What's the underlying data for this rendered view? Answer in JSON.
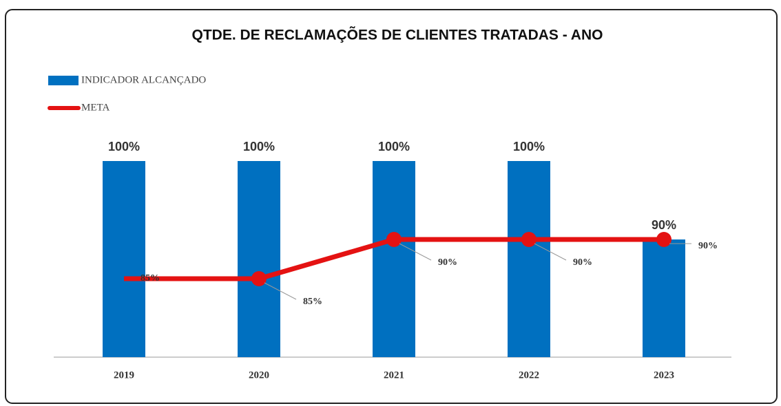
{
  "chart_data": {
    "type": "bar",
    "title": "QTDE. DE RECLAMAÇÕES DE CLIENTES TRATADAS - ANO",
    "categories": [
      "2019",
      "2020",
      "2021",
      "2022",
      "2023"
    ],
    "series": [
      {
        "name": "INDICADOR ALCANÇADO",
        "type": "bar",
        "color": "#0070c0",
        "values": [
          100,
          100,
          100,
          100,
          90
        ],
        "value_labels": [
          "100%",
          "100%",
          "100%",
          "100%",
          "90%"
        ]
      },
      {
        "name": "META",
        "type": "line",
        "color": "#e41212",
        "values": [
          85,
          85,
          90,
          90,
          90
        ],
        "value_labels": [
          "85%",
          "85%",
          "90%",
          "90%",
          "90%"
        ]
      }
    ],
    "ylim": [
      75,
      100
    ],
    "legend": "top-left"
  }
}
